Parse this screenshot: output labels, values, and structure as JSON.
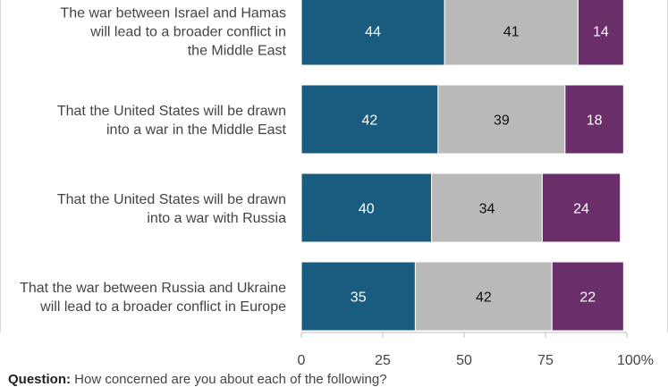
{
  "chart_data": {
    "type": "bar",
    "orientation": "horizontal",
    "stacked": true,
    "categories": [
      "The war between Israel and Hamas will lead to a broader conflict in the Middle East",
      "That the United States will be drawn into a war in the Middle East",
      "That the United States will be drawn into a war with Russia",
      "That the war between Russia and Ukraine will lead to a broader conflict in Europe"
    ],
    "category_lines": [
      [
        "The war between Israel and Hamas",
        "will lead to a broader conflict in",
        "the Middle East"
      ],
      [
        "That the United States will be drawn",
        "into a war in the Middle East"
      ],
      [
        "That the United States will be drawn",
        "into a war with Russia"
      ],
      [
        "That the war between Russia and Ukraine",
        "will lead to a broader conflict in Europe"
      ]
    ],
    "series": [
      {
        "values": [
          44,
          42,
          40,
          35
        ],
        "color": "#1a5c80",
        "label_color": "#ffffff"
      },
      {
        "values": [
          41,
          39,
          34,
          42
        ],
        "color": "#b9b9b9",
        "label_color": "#111111"
      },
      {
        "values": [
          14,
          18,
          24,
          22
        ],
        "color": "#6a2f6b",
        "label_color": "#ffffff"
      }
    ],
    "xlim": [
      0,
      100
    ],
    "x_ticks": [
      "0",
      "25",
      "50",
      "75",
      "100%"
    ],
    "x_tick_values": [
      0,
      25,
      50,
      75,
      100
    ]
  },
  "footnote": {
    "label": "Question:",
    "text": " How concerned are you about each of the following?"
  }
}
